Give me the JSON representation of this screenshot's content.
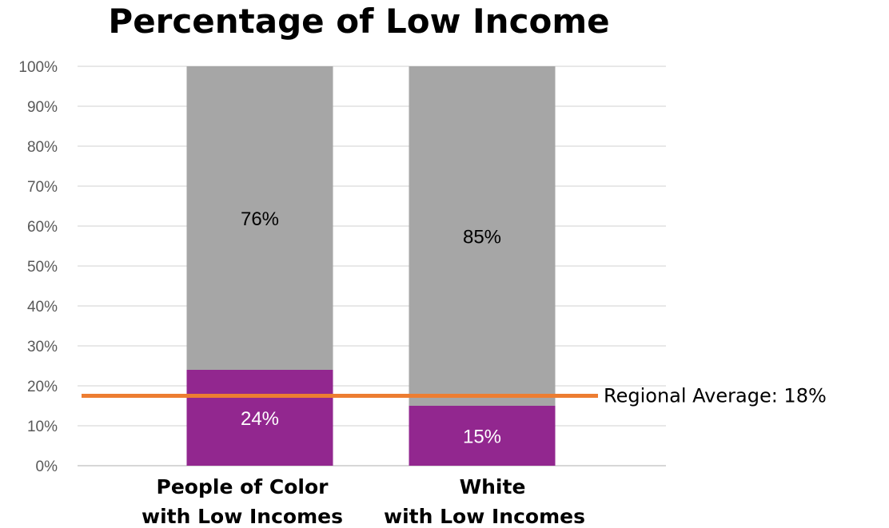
{
  "chart_data": {
    "type": "bar",
    "stacked": true,
    "title": "Percentage of Low Income",
    "categories": [
      [
        "People of Color",
        "with Low Incomes"
      ],
      [
        "White",
        "with Low Incomes"
      ]
    ],
    "series": [
      {
        "values": [
          24,
          15
        ],
        "labels": [
          "24%",
          "15%"
        ],
        "color": "#92278f",
        "label_color": "#ffffff"
      },
      {
        "values": [
          76,
          85
        ],
        "labels": [
          "76%",
          "85%"
        ],
        "color": "#a6a6a6",
        "label_color": "#000000"
      }
    ],
    "ylim": [
      0,
      100
    ],
    "yticks": [
      "0%",
      "10%",
      "20%",
      "30%",
      "40%",
      "50%",
      "60%",
      "70%",
      "80%",
      "90%",
      "100%"
    ],
    "grid": true,
    "reference_line": {
      "value": 17.5,
      "label": "Regional Average: 18%",
      "color": "#ed7d31"
    }
  }
}
